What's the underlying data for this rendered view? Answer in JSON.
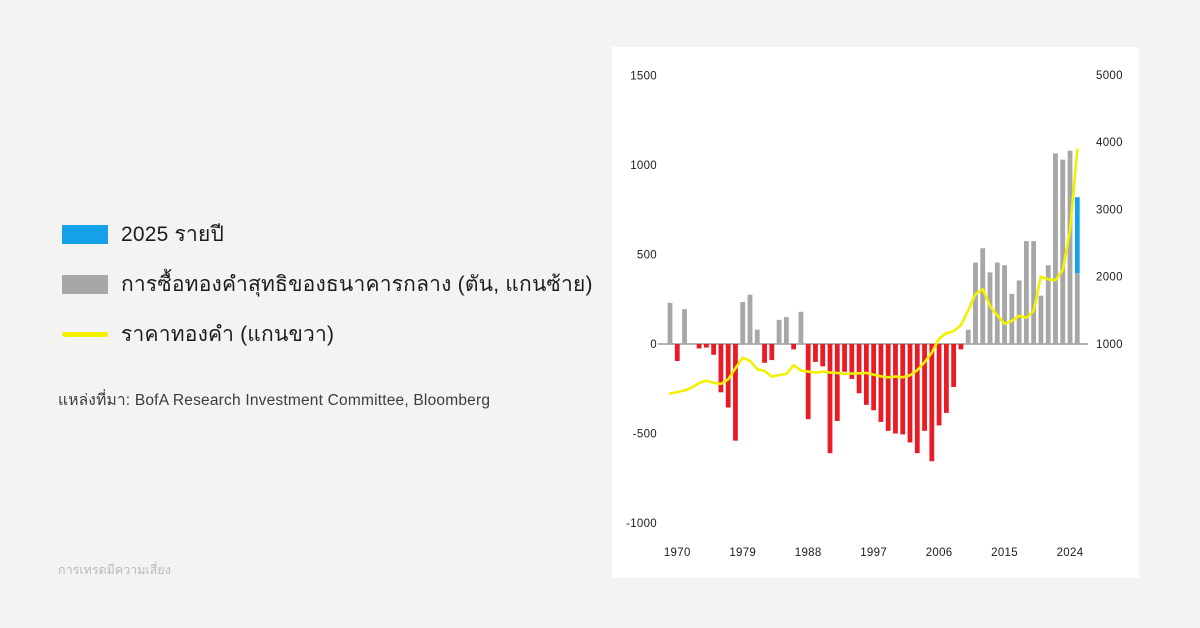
{
  "page": {
    "background": "#f4f3f1",
    "watermark": "การเทรดมีความเสี่ยง"
  },
  "legend": {
    "items": [
      {
        "id": "annualized-2025",
        "swatch": "block",
        "color": "#16a0ea",
        "label": "2025 รายปี"
      },
      {
        "id": "cb-net-purchases",
        "swatch": "block",
        "color": "#a7a7a7",
        "label": "การซื้อทองคำสุทธิของธนาคารกลาง (ตัน, แกนซ้าย)"
      },
      {
        "id": "gold-price",
        "swatch": "line",
        "color": "#f2f000",
        "label": "ราคาทองคำ (แกนขวา)"
      }
    ]
  },
  "source": "แหล่งที่มา: BofA Research Investment Committee, Bloomberg",
  "chart_data": {
    "type": "bar+line",
    "title": "",
    "left_axis": {
      "label": "ตัน (แกนซ้าย)",
      "ticks": [
        1500,
        1000,
        500,
        0,
        -500,
        -1000
      ],
      "range": [
        -1000,
        1500
      ]
    },
    "right_axis": {
      "label": "ราคาทองคำ (แกนขวา)",
      "ticks": [
        5000,
        4000,
        3000,
        2000,
        1000
      ],
      "range": [
        1000,
        5000
      ]
    },
    "x_ticks": [
      1970,
      1979,
      1988,
      1997,
      2006,
      2015,
      2024
    ],
    "grid": false,
    "legend_position": "outside-left",
    "colors": {
      "positive_bar": "#a7a7a7",
      "negative_bar": "#e81c25",
      "bar_2025": "#16a0ea",
      "line": "#f2f000",
      "axis_line": "#9a9a9a"
    },
    "bars": {
      "name": "การซื้อทองคำสุทธิของธนาคารกลาง (ตัน, แกนซ้าย)",
      "years": [
        1969,
        1970,
        1971,
        1972,
        1973,
        1974,
        1975,
        1976,
        1977,
        1978,
        1979,
        1980,
        1981,
        1982,
        1983,
        1984,
        1985,
        1986,
        1987,
        1988,
        1989,
        1990,
        1991,
        1992,
        1993,
        1994,
        1995,
        1996,
        1997,
        1998,
        1999,
        2000,
        2001,
        2002,
        2003,
        2004,
        2005,
        2006,
        2007,
        2008,
        2009,
        2010,
        2011,
        2012,
        2013,
        2014,
        2015,
        2016,
        2017,
        2018,
        2019,
        2020,
        2021,
        2022,
        2023,
        2024
      ],
      "values": [
        230,
        -95,
        195,
        0,
        -25,
        -20,
        -60,
        -270,
        -355,
        -540,
        235,
        275,
        80,
        -105,
        -90,
        135,
        150,
        -30,
        180,
        -420,
        -100,
        -125,
        -610,
        -430,
        -155,
        -195,
        -275,
        -340,
        -370,
        -435,
        -485,
        -500,
        -505,
        -550,
        -610,
        -485,
        -655,
        -455,
        -385,
        -240,
        -30,
        80,
        455,
        535,
        400,
        455,
        440,
        280,
        355,
        575,
        575,
        270,
        440,
        1065,
        1030,
        1080
      ]
    },
    "bar_2025": {
      "year": 2025,
      "gray_segment": [
        0,
        395
      ],
      "blue_segment": [
        395,
        820
      ],
      "note": "2025 รายปี"
    },
    "line": {
      "name": "ราคาทองคำ (แกนขวา)",
      "years": [
        1969,
        1970,
        1971,
        1972,
        1973,
        1974,
        1975,
        1976,
        1977,
        1978,
        1979,
        1980,
        1981,
        1982,
        1983,
        1984,
        1985,
        1986,
        1987,
        1988,
        1989,
        1990,
        1991,
        1992,
        1993,
        1994,
        1995,
        1996,
        1997,
        1998,
        1999,
        2000,
        2001,
        2002,
        2003,
        2004,
        2005,
        2006,
        2007,
        2008,
        2009,
        2010,
        2011,
        2012,
        2013,
        2014,
        2015,
        2016,
        2017,
        2018,
        2019,
        2020,
        2021,
        2022,
        2023,
        2024,
        2025
      ],
      "values": [
        265,
        285,
        310,
        350,
        420,
        455,
        425,
        405,
        475,
        640,
        795,
        750,
        625,
        600,
        515,
        540,
        555,
        685,
        605,
        590,
        575,
        590,
        575,
        570,
        555,
        560,
        565,
        570,
        545,
        520,
        505,
        515,
        505,
        535,
        610,
        730,
        870,
        1080,
        1160,
        1190,
        1280,
        1500,
        1740,
        1815,
        1565,
        1425,
        1300,
        1340,
        1420,
        1390,
        1490,
        2000,
        1960,
        1950,
        2095,
        2680,
        3890
      ]
    }
  }
}
